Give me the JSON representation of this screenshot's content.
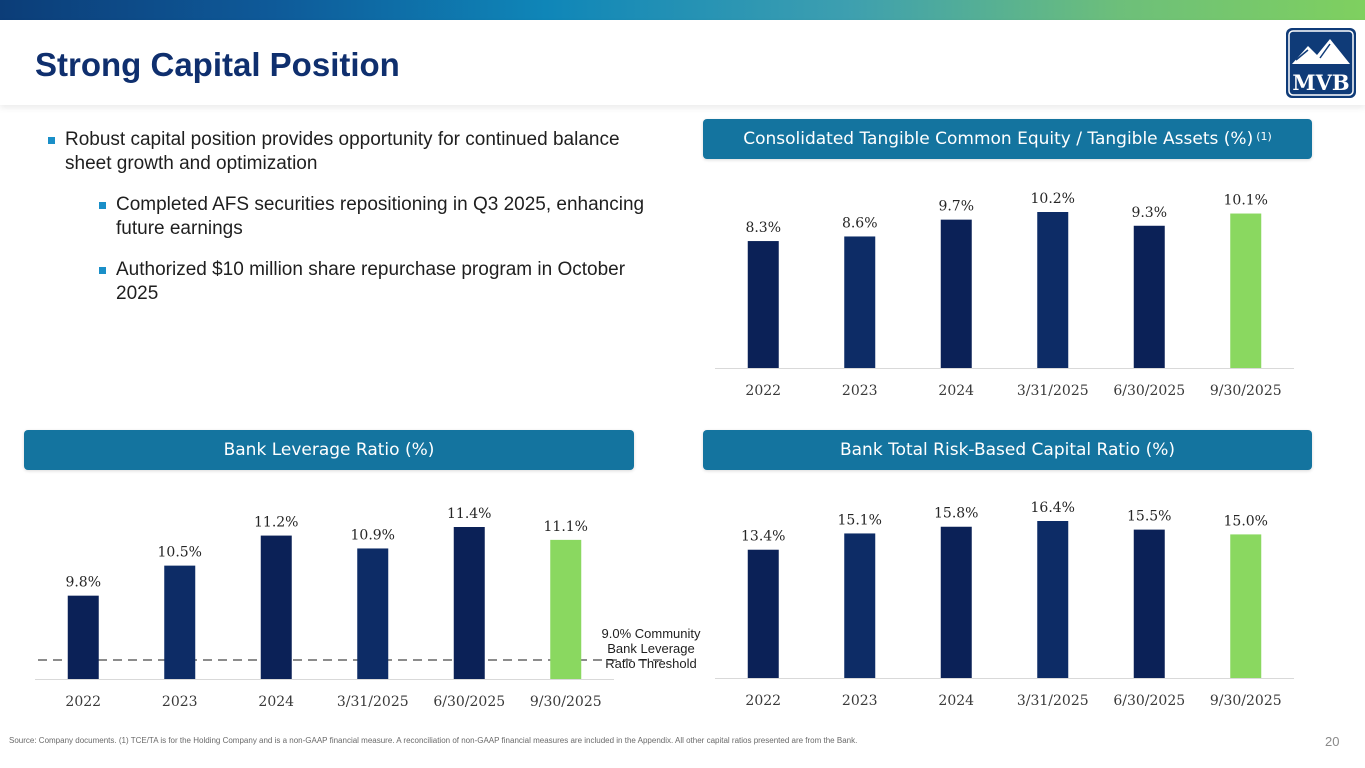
{
  "page": {
    "title": "Strong Capital Position",
    "logo_text": "MVB",
    "page_number": "20",
    "source_note": "Source: Company documents. (1) TCE/TA is for the Holding Company and is a non-GAAP financial measure. A reconciliation of non-GAAP financial measures are included in the Appendix. All other capital ratios presented are from the Bank."
  },
  "bullets": [
    {
      "level": 1,
      "text": "Robust capital position provides opportunity for continued balance sheet growth and optimization"
    },
    {
      "level": 2,
      "text": "Completed AFS securities repositioning in Q3 2025, enhancing future earnings"
    },
    {
      "level": 2,
      "text": "Authorized $10 million share repurchase program in October 2025"
    }
  ],
  "colors": {
    "dark_navy": "#0b2157",
    "navy": "#0d2c66",
    "green": "#8ad860",
    "pill": "#14749f",
    "title": "#0f2f6e"
  },
  "chart_data": [
    {
      "id": "tce",
      "type": "bar",
      "title": "Consolidated Tangible Common Equity / Tangible Assets (%)",
      "title_superscript": "(1)",
      "categories": [
        "2022",
        "2023",
        "2024",
        "3/31/2025",
        "6/30/2025",
        "9/30/2025"
      ],
      "values": [
        8.3,
        8.6,
        9.7,
        10.2,
        9.3,
        10.1
      ],
      "data_labels": [
        "8.3%",
        "8.6%",
        "9.7%",
        "10.2%",
        "9.3%",
        "10.1%"
      ],
      "highlight_index": 5,
      "ylim": [
        0,
        10.2
      ],
      "xlabel": "",
      "ylabel": "",
      "grid": false
    },
    {
      "id": "leverage",
      "type": "bar",
      "title": "Bank Leverage Ratio (%)",
      "categories": [
        "2022",
        "2023",
        "2024",
        "3/31/2025",
        "6/30/2025",
        "9/30/2025"
      ],
      "values": [
        9.8,
        10.5,
        11.2,
        10.9,
        11.4,
        11.1
      ],
      "data_labels": [
        "9.8%",
        "10.5%",
        "11.2%",
        "10.9%",
        "11.4%",
        "11.1%"
      ],
      "highlight_index": 5,
      "ylim": [
        9.0,
        11.4
      ],
      "threshold": {
        "value": 9.0,
        "label": "9.0% Community Bank Leverage Ratio Threshold"
      },
      "xlabel": "",
      "ylabel": "",
      "grid": false
    },
    {
      "id": "rbc",
      "type": "bar",
      "title": "Bank Total Risk-Based Capital Ratio (%)",
      "categories": [
        "2022",
        "2023",
        "2024",
        "3/31/2025",
        "6/30/2025",
        "9/30/2025"
      ],
      "values": [
        13.4,
        15.1,
        15.8,
        16.4,
        15.5,
        15.0
      ],
      "data_labels": [
        "13.4%",
        "15.1%",
        "15.8%",
        "16.4%",
        "15.5%",
        "15.0%"
      ],
      "highlight_index": 5,
      "ylim": [
        0,
        16.4
      ],
      "xlabel": "",
      "ylabel": "",
      "grid": false
    }
  ]
}
